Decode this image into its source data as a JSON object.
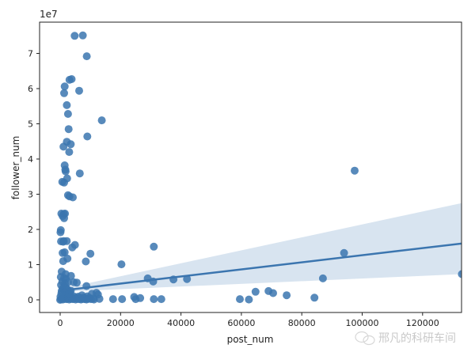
{
  "chart_data": {
    "type": "scatter",
    "title": "",
    "xlabel": "post_num",
    "ylabel": "follower_num",
    "y_offset_label": "1e7",
    "xlim": [
      -7000,
      133000
    ],
    "ylim": [
      -4000000,
      79000000
    ],
    "x_ticks": [
      0,
      20000,
      40000,
      60000,
      80000,
      100000,
      120000
    ],
    "x_tick_labels": [
      "0",
      "20000",
      "40000",
      "60000",
      "80000",
      "100000",
      "120000"
    ],
    "y_ticks": [
      0,
      10000000,
      20000000,
      30000000,
      40000000,
      50000000,
      60000000,
      70000000
    ],
    "y_tick_labels": [
      "0",
      "1",
      "2",
      "3",
      "4",
      "5",
      "6",
      "7"
    ],
    "grid": false,
    "legend": null,
    "point_color": "#3b75af",
    "regression": {
      "line_color": "#3b75af",
      "ci_color": "#c8d9ea",
      "x_start": 1000,
      "y_start": 2700000,
      "x_end": 133000,
      "y_end": 16000000,
      "ci_end_upper": 27500000,
      "ci_end_lower": 7300000,
      "ci_start_upper": 3200000,
      "ci_start_lower": 2300000
    },
    "points": [
      [
        4800,
        75000000
      ],
      [
        7500,
        75100000
      ],
      [
        8800,
        69200000
      ],
      [
        3100,
        62500000
      ],
      [
        3800,
        62700000
      ],
      [
        1500,
        60600000
      ],
      [
        1300,
        58700000
      ],
      [
        6300,
        59400000
      ],
      [
        2200,
        55300000
      ],
      [
        2600,
        52800000
      ],
      [
        13800,
        51000000
      ],
      [
        2800,
        48500000
      ],
      [
        9000,
        46400000
      ],
      [
        2200,
        44900000
      ],
      [
        1100,
        43500000
      ],
      [
        3500,
        44200000
      ],
      [
        3000,
        42000000
      ],
      [
        1500,
        38200000
      ],
      [
        1700,
        37000000
      ],
      [
        1800,
        36500000
      ],
      [
        6500,
        35900000
      ],
      [
        2300,
        34500000
      ],
      [
        700,
        33500000
      ],
      [
        1300,
        33300000
      ],
      [
        2600,
        29700000
      ],
      [
        3100,
        29400000
      ],
      [
        4200,
        29100000
      ],
      [
        400,
        24500000
      ],
      [
        1200,
        24400000
      ],
      [
        1600,
        24500000
      ],
      [
        800,
        23800000
      ],
      [
        1300,
        23200000
      ],
      [
        200,
        19800000
      ],
      [
        100,
        19200000
      ],
      [
        300,
        16600000
      ],
      [
        1200,
        16700000
      ],
      [
        2200,
        16700000
      ],
      [
        1000,
        16500000
      ],
      [
        4900,
        15600000
      ],
      [
        4000,
        14900000
      ],
      [
        1500,
        13500000
      ],
      [
        800,
        13300000
      ],
      [
        10000,
        13100000
      ],
      [
        2400,
        11700000
      ],
      [
        8500,
        10900000
      ],
      [
        1000,
        11000000
      ],
      [
        20300,
        10100000
      ],
      [
        31000,
        15100000
      ],
      [
        94000,
        13300000
      ],
      [
        500,
        8000000
      ],
      [
        1800,
        7300000
      ],
      [
        3600,
        6800000
      ],
      [
        200,
        6500000
      ],
      [
        1300,
        6200000
      ],
      [
        4500,
        5000000
      ],
      [
        5500,
        4900000
      ],
      [
        8700,
        3900000
      ],
      [
        2600,
        5000000
      ],
      [
        29000,
        6100000
      ],
      [
        30800,
        5200000
      ],
      [
        37500,
        5800000
      ],
      [
        42000,
        5900000
      ],
      [
        87000,
        6100000
      ],
      [
        97500,
        36700000
      ],
      [
        133000,
        7300000
      ],
      [
        12000,
        2000000
      ],
      [
        12500,
        1500000
      ],
      [
        13000,
        300000
      ],
      [
        9000,
        1000000
      ],
      [
        11000,
        400000
      ],
      [
        17500,
        200000
      ],
      [
        20500,
        200000
      ],
      [
        24500,
        800000
      ],
      [
        25000,
        200000
      ],
      [
        26500,
        500000
      ],
      [
        31000,
        200000
      ],
      [
        33500,
        200000
      ],
      [
        59500,
        200000
      ],
      [
        62500,
        100000
      ],
      [
        64700,
        2300000
      ],
      [
        69000,
        2500000
      ],
      [
        70500,
        1900000
      ],
      [
        75000,
        1300000
      ],
      [
        84200,
        600000
      ],
      [
        0,
        0
      ],
      [
        300,
        200000
      ],
      [
        600,
        400000
      ],
      [
        900,
        100000
      ],
      [
        1200,
        600000
      ],
      [
        1500,
        300000
      ],
      [
        1800,
        1200000
      ],
      [
        2100,
        200000
      ],
      [
        2400,
        800000
      ],
      [
        2700,
        400000
      ],
      [
        3000,
        100000
      ],
      [
        3300,
        1500000
      ],
      [
        3600,
        300000
      ],
      [
        3900,
        700000
      ],
      [
        4200,
        200000
      ],
      [
        4500,
        1000000
      ],
      [
        4800,
        400000
      ],
      [
        5100,
        100000
      ],
      [
        5400,
        600000
      ],
      [
        5700,
        300000
      ],
      [
        6000,
        900000
      ],
      [
        6300,
        200000
      ],
      [
        6600,
        500000
      ],
      [
        6900,
        100000
      ],
      [
        7200,
        1300000
      ],
      [
        7500,
        300000
      ],
      [
        7800,
        700000
      ],
      [
        8100,
        200000
      ],
      [
        8400,
        400000
      ],
      [
        8700,
        100000
      ],
      [
        9300,
        300000
      ],
      [
        9600,
        600000
      ],
      [
        10200,
        200000
      ],
      [
        10500,
        1700000
      ],
      [
        11200,
        100000
      ],
      [
        500,
        2500000
      ],
      [
        800,
        3200000
      ],
      [
        1100,
        2800000
      ],
      [
        1400,
        3800000
      ],
      [
        1700,
        2100000
      ],
      [
        2000,
        3300000
      ],
      [
        300,
        4200000
      ],
      [
        700,
        5200000
      ],
      [
        1600,
        4600000
      ],
      [
        1900,
        5900000
      ],
      [
        2500,
        2900000
      ],
      [
        3200,
        2300000
      ],
      [
        400,
        1800000
      ],
      [
        100,
        900000
      ],
      [
        2900,
        1800000
      ],
      [
        3500,
        2600000
      ]
    ]
  },
  "watermark": {
    "text": "邢凡的科研车间",
    "icon": "wechat-icon"
  }
}
